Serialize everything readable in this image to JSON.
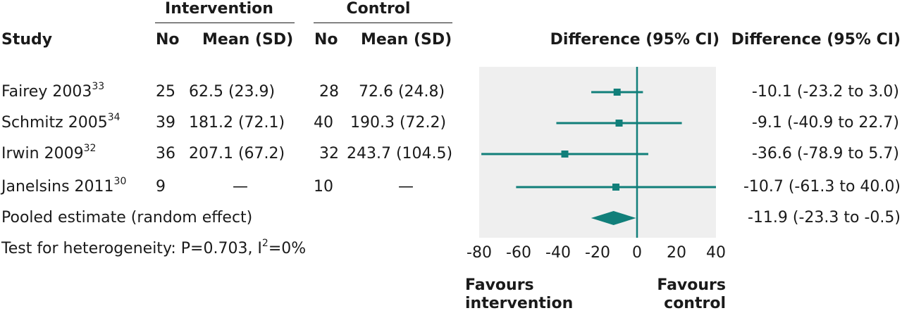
{
  "headers": {
    "intervention": "Intervention",
    "control": "Control",
    "study": "Study",
    "no1": "No",
    "mean1": "Mean (SD)",
    "no2": "No",
    "mean2": "Mean (SD)",
    "diff_plot": "Difference (95% CI)",
    "diff_text": "Difference (95% CI)"
  },
  "studies": [
    {
      "name": "Fairey 2003",
      "ref": "33",
      "int_n": "25",
      "int_mean": "62.5 (23.9)",
      "ctl_n": "28",
      "ctl_mean": "72.6 (24.8)",
      "diff": "-10.1 (-23.2 to 3.0)"
    },
    {
      "name": "Schmitz 2005",
      "ref": "34",
      "int_n": "39",
      "int_mean": "181.2 (72.1)",
      "ctl_n": "40",
      "ctl_mean": "190.3 (72.2)",
      "diff": "-9.1 (-40.9 to 22.7)"
    },
    {
      "name": "Irwin 2009",
      "ref": "32",
      "int_n": "36",
      "int_mean": "207.1 (67.2)",
      "ctl_n": "32",
      "ctl_mean": "243.7 (104.5)",
      "diff": "-36.6 (-78.9 to 5.7)"
    },
    {
      "name": "Janelsins 2011",
      "ref": "30",
      "int_n": "9",
      "int_mean": "—",
      "ctl_n": "10",
      "ctl_mean": "—",
      "diff": "-10.7 (-61.3 to 40.0)"
    }
  ],
  "pooled": {
    "label": "Pooled estimate (random effect)",
    "diff": "-11.9 (-23.3 to -0.5)"
  },
  "heterogeneity": {
    "prefix": "Test for heterogeneity: P=0.703, I",
    "sup": "2",
    "suffix": "=0%"
  },
  "favours": {
    "left1": "Favours",
    "left2": "intervention",
    "right1": "Favours",
    "right2": "control"
  },
  "colors": {
    "marker": "#117f7a",
    "panel": "#efefef",
    "text": "#1a1a1a"
  },
  "chart_data": {
    "type": "forest",
    "xlim": [
      -80,
      40
    ],
    "xticks": [
      -80,
      -60,
      -40,
      -20,
      0,
      20,
      40
    ],
    "studies": [
      {
        "name": "Fairey 2003",
        "estimate": -10.1,
        "lower": -23.2,
        "upper": 3.0
      },
      {
        "name": "Schmitz 2005",
        "estimate": -9.1,
        "lower": -40.9,
        "upper": 22.7
      },
      {
        "name": "Irwin 2009",
        "estimate": -36.6,
        "lower": -78.9,
        "upper": 5.7
      },
      {
        "name": "Janelsins 2011",
        "estimate": -10.7,
        "lower": -61.3,
        "upper": 40.0
      }
    ],
    "pooled": {
      "estimate": -11.9,
      "lower": -23.3,
      "upper": -0.5
    },
    "reference_line": 0,
    "arrow_right_on_study": "Janelsins 2011"
  }
}
